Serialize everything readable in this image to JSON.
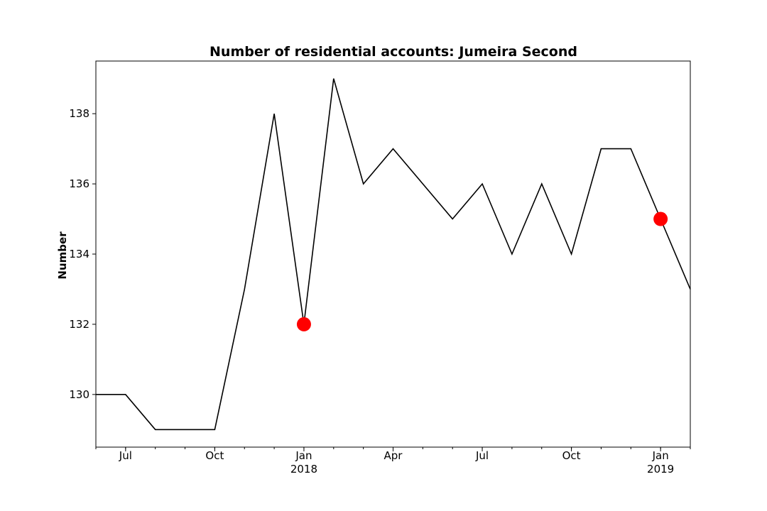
{
  "chart_data": {
    "type": "line",
    "title": "Number of residential accounts: Jumeira Second",
    "xlabel": "",
    "ylabel": "Number",
    "x": [
      "2017-06",
      "2017-07",
      "2017-08",
      "2017-09",
      "2017-10",
      "2017-11",
      "2017-12",
      "2018-01",
      "2018-02",
      "2018-03",
      "2018-04",
      "2018-05",
      "2018-06",
      "2018-07",
      "2018-08",
      "2018-09",
      "2018-10",
      "2018-11",
      "2018-12",
      "2019-01",
      "2019-02"
    ],
    "series": [
      {
        "values": [
          130,
          130,
          129,
          129,
          129,
          133,
          138,
          132,
          139,
          136,
          137,
          136,
          135,
          136,
          134,
          136,
          134,
          137,
          137,
          135,
          133
        ],
        "color": "#000000"
      }
    ],
    "highlighted_points": [
      {
        "x": "2018-01",
        "y": 132,
        "color": "#ff0000"
      },
      {
        "x": "2019-01",
        "y": 135,
        "color": "#ff0000"
      }
    ],
    "ylim": [
      128.5,
      139.5
    ],
    "xlim": [
      "2017-06",
      "2019-02"
    ],
    "y_ticks": [
      130,
      132,
      134,
      136,
      138
    ],
    "x_ticks": [
      {
        "x": "2017-07",
        "label": "Jul"
      },
      {
        "x": "2017-10",
        "label": "Oct"
      },
      {
        "x": "2018-01",
        "label": "Jan",
        "year": "2018"
      },
      {
        "x": "2018-04",
        "label": "Apr"
      },
      {
        "x": "2018-07",
        "label": "Jul"
      },
      {
        "x": "2018-10",
        "label": "Oct"
      },
      {
        "x": "2019-01",
        "label": "Jan",
        "year": "2019"
      }
    ],
    "grid": false,
    "legend": "none"
  }
}
